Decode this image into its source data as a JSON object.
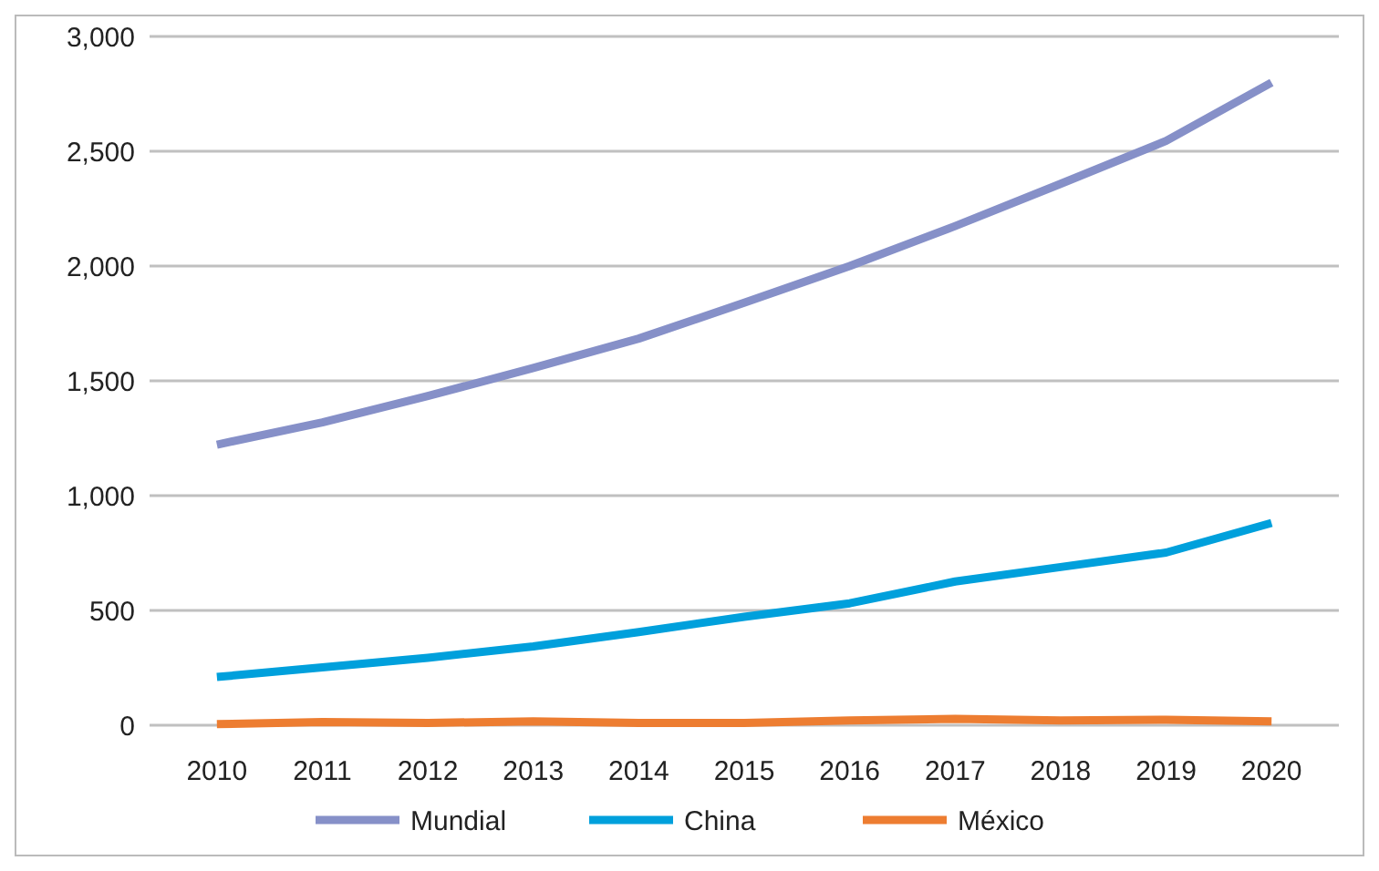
{
  "chart_data": {
    "type": "line",
    "categories": [
      "2010",
      "2011",
      "2012",
      "2013",
      "2014",
      "2015",
      "2016",
      "2017",
      "2018",
      "2019",
      "2020"
    ],
    "series": [
      {
        "name": "Mundial",
        "color": "#8690c8",
        "values": [
          1222,
          1319,
          1434,
          1556,
          1684,
          1840,
          2000,
          2174,
          2358,
          2545,
          2799
        ]
      },
      {
        "name": "China",
        "color": "#00a0dc",
        "values": [
          210,
          252,
          294,
          343,
          406,
          472,
          531,
          626,
          689,
          752,
          881
        ]
      },
      {
        "name": "México",
        "color": "#ed7d31",
        "values": [
          5,
          14,
          10,
          17,
          10,
          10,
          21,
          28,
          21,
          24,
          17
        ]
      }
    ],
    "ylim": [
      0,
      3000
    ],
    "yticks": [
      {
        "value": 0,
        "label": "0"
      },
      {
        "value": 500,
        "label": "500"
      },
      {
        "value": 1000,
        "label": "1,000"
      },
      {
        "value": 1500,
        "label": "1,500"
      },
      {
        "value": 2000,
        "label": "2,000"
      },
      {
        "value": 2500,
        "label": "2,500"
      },
      {
        "value": 3000,
        "label": "3,000"
      }
    ],
    "grid": "y",
    "legend": "bottom",
    "marker": "none",
    "line_style": "solid"
  }
}
